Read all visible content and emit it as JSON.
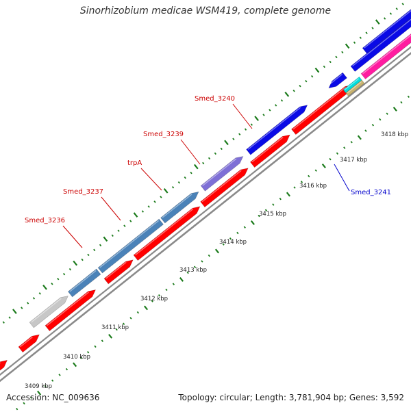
{
  "title": "Sinorhizobium medicae WSM419, complete genome",
  "footer": {
    "accession": "Accession: NC_009636",
    "summary": "Topology: circular; Length: 3,781,904 bp; Genes: 3,592"
  },
  "colors": {
    "background": "#ffffff",
    "backbone": "#7f7f7f",
    "tick": "#1a7a1a",
    "label_red": "#cc0000",
    "label_blue": "#0000cc"
  },
  "scale_labels": [
    {
      "kbp": 3409,
      "label": "3409 kbp"
    },
    {
      "kbp": 3410,
      "label": "3410 kbp"
    },
    {
      "kbp": 3411,
      "label": "3411 kbp"
    },
    {
      "kbp": 3412,
      "label": "3412 kbp"
    },
    {
      "kbp": 3413,
      "label": "3413 kbp"
    },
    {
      "kbp": 3414,
      "label": "3414 kbp"
    },
    {
      "kbp": 3415,
      "label": "3415 kbp"
    },
    {
      "kbp": 3416,
      "label": "3416 kbp"
    },
    {
      "kbp": 3417,
      "label": "3417 kbp"
    },
    {
      "kbp": 3418,
      "label": "3418 kbp"
    }
  ],
  "gene_labels": [
    {
      "name": "Smed_3236",
      "color": "#cc0000"
    },
    {
      "name": "Smed_3237",
      "color": "#cc0000"
    },
    {
      "name": "trpA",
      "color": "#cc0000"
    },
    {
      "name": "Smed_3239",
      "color": "#cc0000"
    },
    {
      "name": "Smed_3240",
      "color": "#cc0000"
    },
    {
      "name": "Smed_3241",
      "color": "#0000cc"
    }
  ]
}
